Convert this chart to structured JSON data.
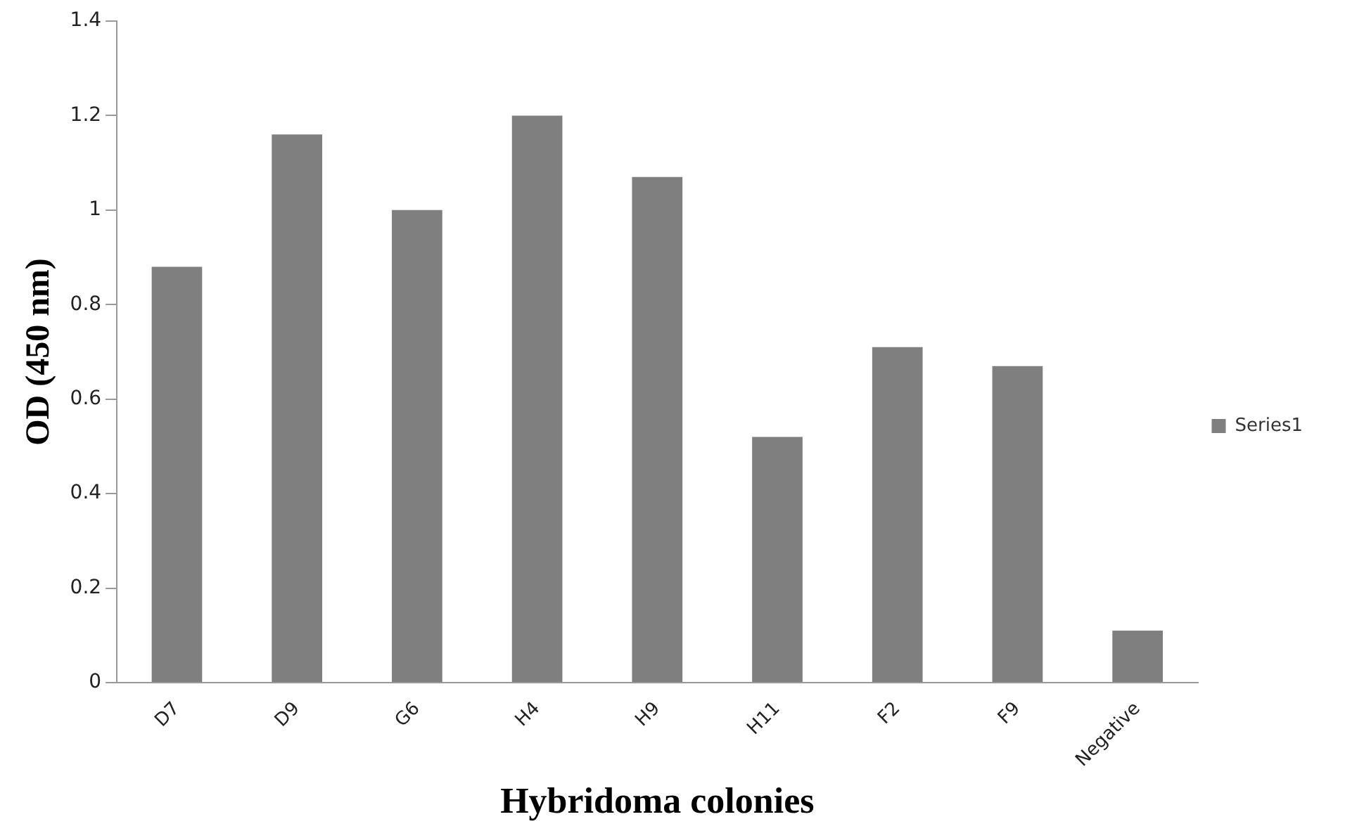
{
  "chart_data": {
    "type": "bar",
    "xlabel": "Hybridoma colonies",
    "ylabel": "OD (450 nm)",
    "categories": [
      "D7",
      "D9",
      "G6",
      "H4",
      "H9",
      "H11",
      "F2",
      "F9",
      "Negative"
    ],
    "series": [
      {
        "name": "Series1",
        "color": "#7f7f7f",
        "values": [
          0.88,
          1.16,
          1.0,
          1.2,
          1.07,
          0.52,
          0.71,
          0.67,
          0.11
        ]
      }
    ],
    "ylim": [
      0,
      1.4
    ],
    "yticks": [
      0,
      0.2,
      0.4,
      0.6,
      0.8,
      1,
      1.2,
      1.4
    ],
    "grid": false,
    "legend": "right"
  }
}
